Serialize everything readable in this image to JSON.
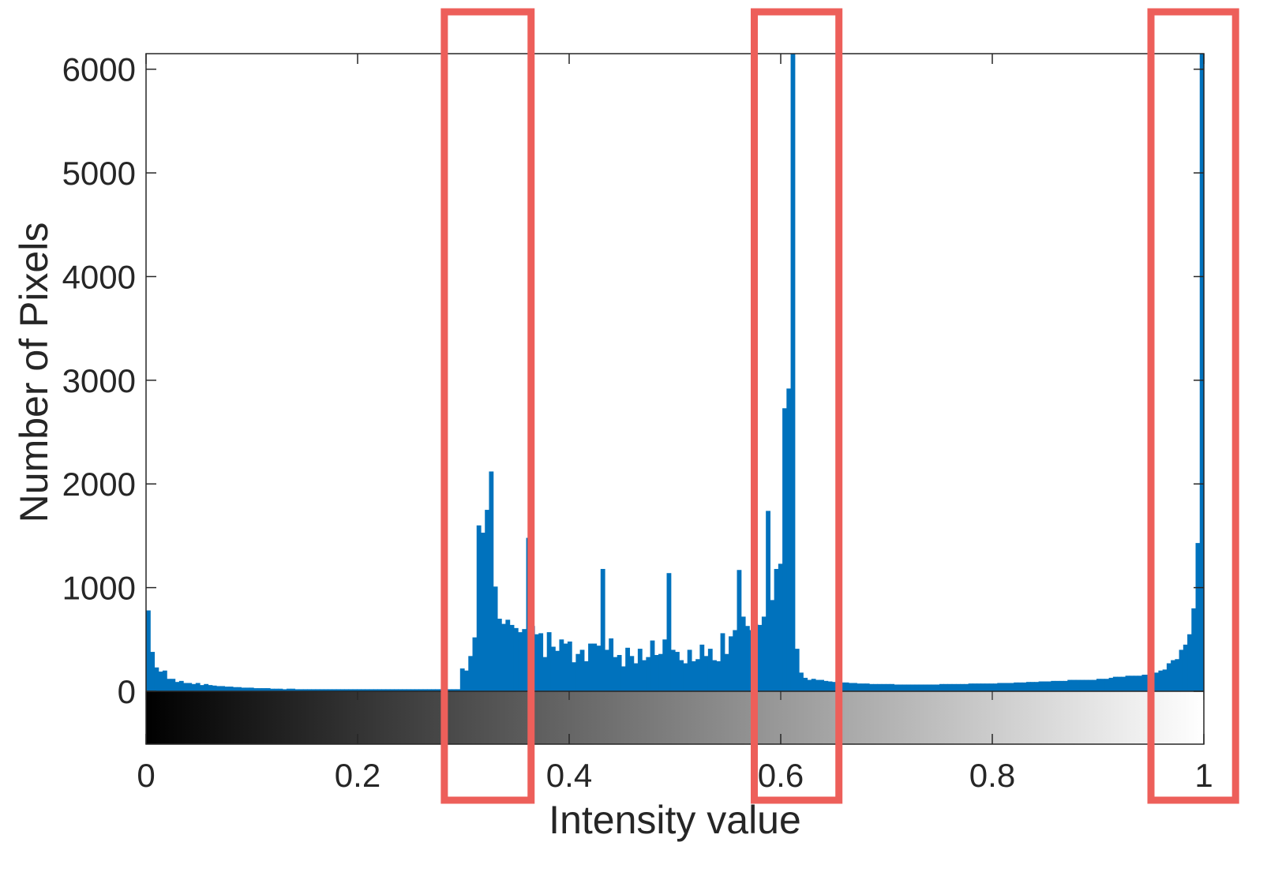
{
  "chart_data": {
    "type": "bar",
    "title": "",
    "xlabel": "Intensity value",
    "ylabel": "Number of Pixels",
    "xlim": [
      0,
      1
    ],
    "ylim": [
      0,
      6150
    ],
    "x_ticks": [
      "0",
      "0.2",
      "0.4",
      "0.6",
      "0.8",
      "1"
    ],
    "y_ticks": [
      "0",
      "1000",
      "2000",
      "3000",
      "4000",
      "5000",
      "6000"
    ],
    "grid": false,
    "legend": "none",
    "bin_width": 0.003922,
    "bar_color": "#0072bd",
    "colorbar": "grayscale gradient from black (0) to white (1) below the x axis",
    "highlight_color": "#ed5f5a",
    "highlight_ranges": [
      [
        0.282,
        0.364
      ],
      [
        0.575,
        0.655
      ],
      [
        0.95,
        1.03
      ]
    ],
    "values": [
      780,
      380,
      230,
      190,
      200,
      120,
      120,
      90,
      100,
      80,
      80,
      70,
      80,
      60,
      70,
      60,
      55,
      50,
      50,
      45,
      45,
      40,
      40,
      35,
      35,
      35,
      30,
      30,
      30,
      30,
      25,
      25,
      25,
      20,
      25,
      25,
      20,
      20,
      20,
      20,
      20,
      20,
      20,
      20,
      20,
      20,
      20,
      20,
      20,
      20,
      20,
      20,
      20,
      20,
      20,
      20,
      20,
      20,
      20,
      20,
      20,
      20,
      20,
      20,
      20,
      20,
      20,
      20,
      20,
      20,
      20,
      20,
      20,
      20,
      20,
      20,
      220,
      200,
      340,
      520,
      1600,
      1530,
      1750,
      2120,
      1010,
      700,
      650,
      690,
      640,
      610,
      570,
      600,
      1480,
      630,
      550,
      560,
      330,
      570,
      430,
      390,
      500,
      460,
      480,
      280,
      360,
      400,
      290,
      460,
      460,
      440,
      1180,
      400,
      510,
      330,
      350,
      240,
      420,
      340,
      270,
      410,
      300,
      330,
      490,
      350,
      360,
      500,
      1140,
      400,
      380,
      300,
      270,
      400,
      290,
      310,
      450,
      340,
      410,
      300,
      290,
      560,
      360,
      530,
      590,
      1170,
      720,
      630,
      590,
      650,
      640,
      720,
      1740,
      880,
      1180,
      1230,
      2730,
      2920,
      6150,
      410,
      180,
      130,
      110,
      120,
      110,
      110,
      100,
      95,
      90,
      85,
      85,
      85,
      80,
      80,
      75,
      75,
      75,
      70,
      70,
      70,
      70,
      70,
      70,
      65,
      65,
      65,
      65,
      65,
      65,
      65,
      65,
      65,
      65,
      65,
      70,
      70,
      70,
      70,
      70,
      70,
      70,
      75,
      75,
      75,
      75,
      75,
      75,
      75,
      80,
      80,
      80,
      80,
      85,
      85,
      85,
      90,
      90,
      90,
      95,
      95,
      95,
      100,
      100,
      100,
      100,
      110,
      110,
      110,
      110,
      110,
      110,
      110,
      120,
      120,
      120,
      130,
      140,
      140,
      140,
      150,
      150,
      150,
      150,
      160,
      160,
      170,
      180,
      200,
      210,
      270,
      300,
      310,
      400,
      450,
      550,
      800,
      1430,
      6150
    ]
  }
}
